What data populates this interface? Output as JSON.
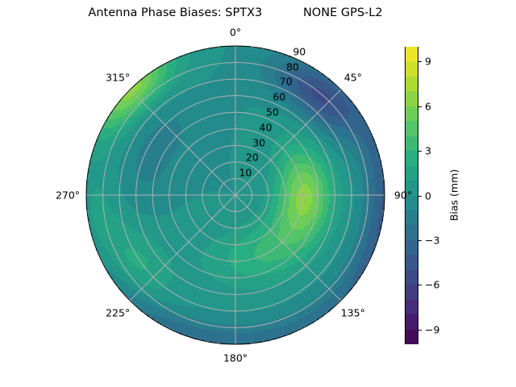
{
  "chart_data": {
    "type": "heatmap",
    "subtype": "polar-contour",
    "title": "Antenna Phase Biases: SPTX3           NONE GPS-L2",
    "angular_axis": {
      "direction": "clockwise",
      "zero": "north",
      "tick_labels": [
        "0°",
        "45°",
        "90°",
        "135°",
        "180°",
        "225°",
        "270°",
        "315°"
      ],
      "tick_values": [
        0,
        45,
        90,
        135,
        180,
        225,
        270,
        315
      ]
    },
    "radial_axis": {
      "range": [
        0,
        90
      ],
      "tick_values": [
        10,
        20,
        30,
        40,
        50,
        60,
        70,
        80,
        90
      ],
      "tick_labels": [
        "10",
        "20",
        "30",
        "40",
        "50",
        "60",
        "70",
        "80",
        "90"
      ]
    },
    "grid": true,
    "colorbar": {
      "label": "Bias (mm)",
      "range": [
        -10,
        10
      ],
      "levels": 20,
      "colormap": "viridis",
      "tick_values": [
        -9,
        -6,
        -3,
        0,
        3,
        6,
        9
      ],
      "tick_labels": [
        "−9",
        "−6",
        "−3",
        "0",
        "3",
        "6",
        "9"
      ],
      "position": "right"
    },
    "field": {
      "base_value": 0,
      "features": [
        {
          "azimuth": 88,
          "zenith": 42,
          "value": 5.5,
          "spread_az": 28,
          "spread_zen": 12
        },
        {
          "azimuth": 150,
          "zenith": 38,
          "value": 3,
          "spread_az": 40,
          "spread_zen": 14
        },
        {
          "azimuth": 315,
          "zenith": 90,
          "value": 6.5,
          "spread_az": 14,
          "spread_zen": 10
        },
        {
          "azimuth": 40,
          "zenith": 78,
          "value": -5,
          "spread_az": 16,
          "spread_zen": 10
        },
        {
          "azimuth": 95,
          "zenith": 90,
          "value": -4,
          "spread_az": 30,
          "spread_zen": 8
        },
        {
          "azimuth": 190,
          "zenith": 90,
          "value": -3,
          "spread_az": 40,
          "spread_zen": 8
        },
        {
          "azimuth": 300,
          "zenith": 55,
          "value": -1.5,
          "spread_az": 25,
          "spread_zen": 12
        },
        {
          "azimuth": 235,
          "zenith": 70,
          "value": 2,
          "spread_az": 15,
          "spread_zen": 12
        },
        {
          "azimuth": 260,
          "zenith": 85,
          "value": 1.5,
          "spread_az": 20,
          "spread_zen": 10
        }
      ]
    }
  }
}
